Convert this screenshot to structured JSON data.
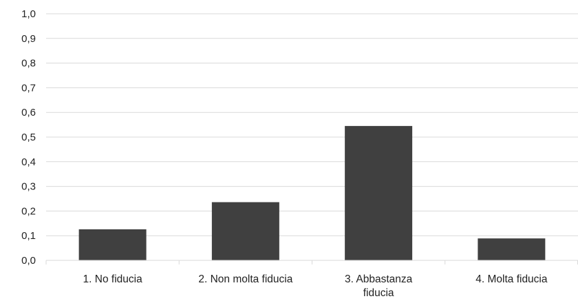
{
  "chart_data": {
    "type": "bar",
    "categories": [
      "1. No fiducia",
      "2. Non molta fiducia",
      "3. Abbastanza fiducia",
      "4. Molta fiducia"
    ],
    "category_lines": [
      [
        "1. No fiducia"
      ],
      [
        "2. Non molta fiducia"
      ],
      [
        "3. Abbastanza",
        "fiducia"
      ],
      [
        "4. Molta fiducia"
      ]
    ],
    "values": [
      0.126,
      0.236,
      0.545,
      0.089
    ],
    "ylim": [
      0,
      1.0
    ],
    "yticks": [
      "0,0",
      "0,1",
      "0,2",
      "0,3",
      "0,4",
      "0,5",
      "0,6",
      "0,7",
      "0,8",
      "0,9",
      "1,0"
    ],
    "grid": true,
    "legend": "none",
    "title": "",
    "xlabel": "",
    "ylabel": "",
    "bar_color": "#404040",
    "grid_color": "#d9d9d9"
  }
}
